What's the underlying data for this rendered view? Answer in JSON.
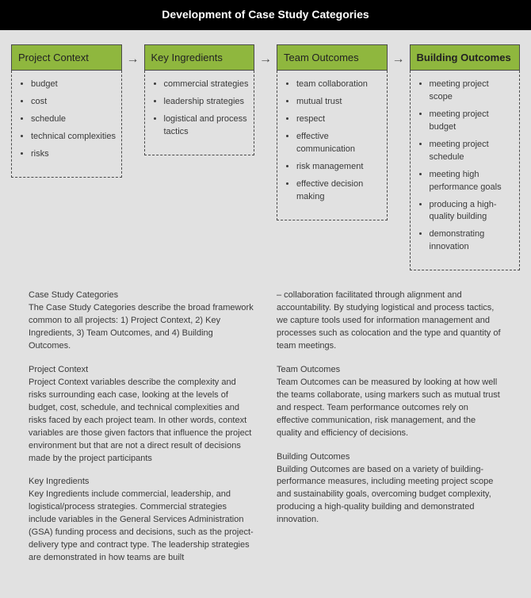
{
  "title": "Development of Case Study Categories",
  "colors": {
    "title_bg": "#000000",
    "title_text": "#ffffff",
    "page_bg": "#e1e1e1",
    "box_header_bg": "#8fb73e",
    "box_border": "#4a4a4a",
    "body_text": "#3a3a3a"
  },
  "flow": {
    "boxes": [
      {
        "label": "Project Context",
        "bold": false,
        "items": [
          "budget",
          "cost",
          "schedule",
          "technical complexities",
          "risks"
        ]
      },
      {
        "label": "Key Ingredients",
        "bold": false,
        "items": [
          "commercial strategies",
          "leadership strategies",
          "logistical and process tactics"
        ]
      },
      {
        "label": "Team Outcomes",
        "bold": false,
        "items": [
          "team collaboration",
          "mutual trust",
          "respect",
          "effective communication",
          "risk management",
          "effective decision making"
        ]
      },
      {
        "label": "Building Outcomes",
        "bold": true,
        "items": [
          "meeting project scope",
          "meeting project budget",
          "meeting project schedule",
          "meeting high performance goals",
          "producing a high-quality building",
          "demonstrating innovation"
        ]
      }
    ],
    "arrow_glyph": "→"
  },
  "left_column": [
    {
      "heading": "Case Study Categories",
      "body": "The Case Study Categories describe the broad framework common to all projects: 1) Project Context, 2) Key Ingredients, 3) Team Outcomes, and 4) Building Outcomes."
    },
    {
      "heading": "Project Context",
      "body": "Project Context variables describe the complexity and risks surrounding each case, looking at the levels of budget, cost, schedule, and technical complexities and risks faced by each project team. In other words, context variables are those given factors that influence the project environment but that are not a direct result of decisions made by the project participants"
    },
    {
      "heading": "Key Ingredients",
      "body": "Key Ingredients include commercial, leadership, and logistical/process strategies. Commercial strategies include variables in the General Services Administration (GSA) funding process and decisions, such as the project-delivery type and contract type. The leadership strategies are demonstrated in how teams are built"
    }
  ],
  "right_column": [
    {
      "heading": "",
      "body": "– collaboration facilitated through alignment and accountability. By studying logistical and process tactics, we capture tools used for information management and processes such as colocation and the type and quantity of team meetings."
    },
    {
      "heading": "Team Outcomes",
      "body": "Team Outcomes can be measured by looking at how well the teams collaborate, using markers such as mutual trust and respect. Team performance outcomes rely on effective communication, risk management, and the quality and efficiency of decisions."
    },
    {
      "heading": "Building Outcomes",
      "body": "Building Outcomes are based on a variety of building-performance measures, including meeting project scope and sustainability goals, overcoming budget complexity, producing a high-quality building and demonstrated innovation."
    }
  ]
}
